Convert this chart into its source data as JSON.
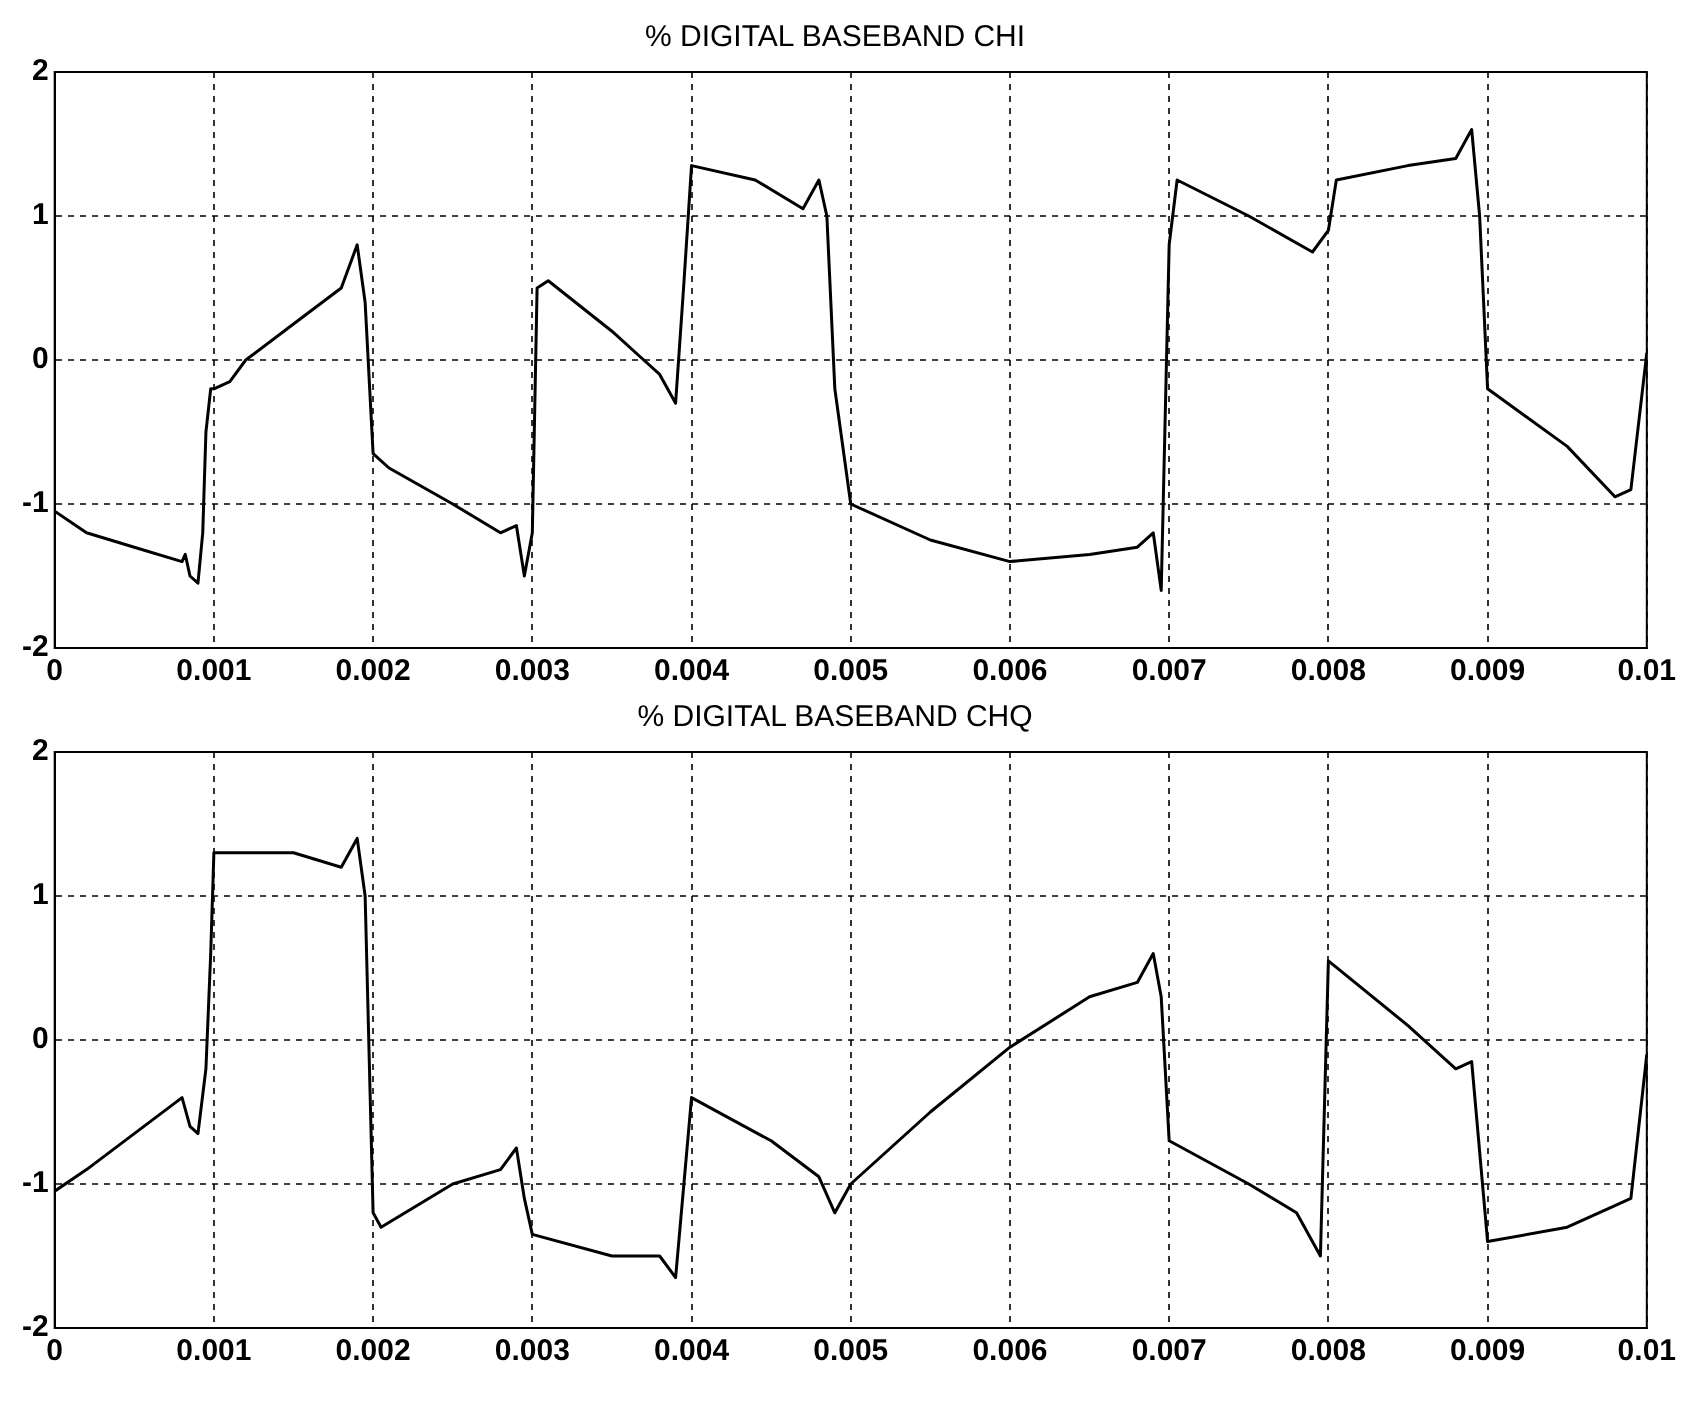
{
  "chart_data": [
    {
      "type": "line",
      "title": "% DIGITAL BASEBAND CHI",
      "xlim": [
        0,
        0.01
      ],
      "xticks": [
        0,
        0.001,
        0.002,
        0.003,
        0.004,
        0.005,
        0.006,
        0.007,
        0.008,
        0.009,
        0.01
      ],
      "ylim": [
        -2,
        2
      ],
      "yticks": [
        -2,
        -1,
        0,
        1,
        2
      ],
      "grid": true,
      "line_style": "solid",
      "marker": "none",
      "series": [
        {
          "color": "#000000",
          "x": [
            0,
            0.0002,
            0.0005,
            0.0008,
            0.00082,
            0.00085,
            0.0009,
            0.00093,
            0.00095,
            0.00098,
            0.001,
            0.0011,
            0.0012,
            0.0015,
            0.0018,
            0.0019,
            0.00195,
            0.002,
            0.0021,
            0.0025,
            0.0028,
            0.0029,
            0.00295,
            0.003,
            0.00303,
            0.0031,
            0.0035,
            0.0037,
            0.0038,
            0.0039,
            0.00395,
            0.004,
            0.0044,
            0.0047,
            0.0048,
            0.00485,
            0.0049,
            0.005,
            0.0055,
            0.006,
            0.0065,
            0.0068,
            0.0069,
            0.00695,
            0.007,
            0.00705,
            0.0075,
            0.0079,
            0.008,
            0.00805,
            0.0085,
            0.0088,
            0.0089,
            0.00895,
            0.009,
            0.0095,
            0.0098,
            0.0099,
            0.01
          ],
          "values": [
            -1.05,
            -1.2,
            -1.3,
            -1.4,
            -1.35,
            -1.5,
            -1.55,
            -1.2,
            -0.5,
            -0.2,
            -0.2,
            -0.15,
            0,
            0.25,
            0.5,
            0.8,
            0.4,
            -0.65,
            -0.75,
            -1,
            -1.2,
            -1.15,
            -1.5,
            -1.2,
            0.5,
            0.55,
            0.2,
            0,
            -0.1,
            -0.3,
            0.5,
            1.35,
            1.25,
            1.05,
            1.25,
            1,
            -0.2,
            -1,
            -1.25,
            -1.4,
            -1.35,
            -1.3,
            -1.2,
            -1.6,
            0.8,
            1.25,
            1,
            0.75,
            0.9,
            1.25,
            1.35,
            1.4,
            1.6,
            1,
            -0.2,
            -0.6,
            -0.95,
            -0.9,
            0.05
          ]
        }
      ]
    },
    {
      "type": "line",
      "title": "% DIGITAL BASEBAND CHQ",
      "xlim": [
        0,
        0.01
      ],
      "xticks": [
        0,
        0.001,
        0.002,
        0.003,
        0.004,
        0.005,
        0.006,
        0.007,
        0.008,
        0.009,
        0.01
      ],
      "ylim": [
        -2,
        2
      ],
      "yticks": [
        -2,
        -1,
        0,
        1,
        2
      ],
      "grid": true,
      "line_style": "solid",
      "marker": "none",
      "series": [
        {
          "color": "#000000",
          "x": [
            0,
            0.0002,
            0.0005,
            0.0008,
            0.00085,
            0.0009,
            0.00095,
            0.00098,
            0.001,
            0.0015,
            0.0018,
            0.0019,
            0.00195,
            0.002,
            0.00205,
            0.0025,
            0.0028,
            0.0029,
            0.00295,
            0.003,
            0.0035,
            0.0038,
            0.0039,
            0.004,
            0.0045,
            0.0048,
            0.0049,
            0.005,
            0.0055,
            0.006,
            0.0065,
            0.0068,
            0.0069,
            0.00695,
            0.007,
            0.0075,
            0.0078,
            0.00795,
            0.008,
            0.0085,
            0.0088,
            0.0089,
            0.009,
            0.0095,
            0.0098,
            0.0099,
            0.01
          ],
          "values": [
            -1.05,
            -0.9,
            -0.65,
            -0.4,
            -0.6,
            -0.65,
            -0.2,
            0.6,
            1.3,
            1.3,
            1.2,
            1.4,
            1,
            -1.2,
            -1.3,
            -1,
            -0.9,
            -0.75,
            -1.1,
            -1.35,
            -1.5,
            -1.5,
            -1.65,
            -0.4,
            -0.7,
            -0.95,
            -1.2,
            -1,
            -0.5,
            -0.05,
            0.3,
            0.4,
            0.6,
            0.3,
            -0.7,
            -1,
            -1.2,
            -1.5,
            0.55,
            0.1,
            -0.2,
            -0.15,
            -1.4,
            -1.3,
            -1.15,
            -1.1,
            -0.1
          ]
        }
      ]
    }
  ]
}
